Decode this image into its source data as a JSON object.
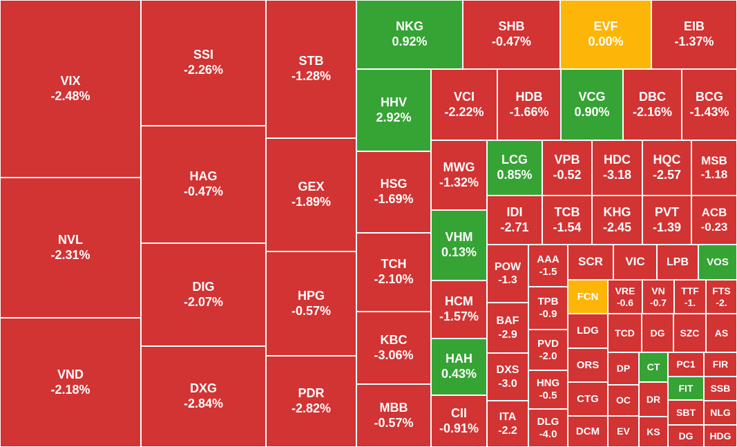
{
  "colors": {
    "down": "#d23333",
    "up": "#36a335",
    "flat": "#fdb508"
  },
  "chart_data": {
    "type": "heatmap",
    "tiles": [
      {
        "symbol": "VIX",
        "change": "-2.48%",
        "status": "down"
      },
      {
        "symbol": "NVL",
        "change": "-2.31%",
        "status": "down"
      },
      {
        "symbol": "VND",
        "change": "-2.18%",
        "status": "down"
      },
      {
        "symbol": "SSI",
        "change": "-2.26%",
        "status": "down"
      },
      {
        "symbol": "HAG",
        "change": "-0.47%",
        "status": "down"
      },
      {
        "symbol": "DIG",
        "change": "-2.07%",
        "status": "down"
      },
      {
        "symbol": "DXG",
        "change": "-2.84%",
        "status": "down"
      },
      {
        "symbol": "STB",
        "change": "-1.28%",
        "status": "down"
      },
      {
        "symbol": "GEX",
        "change": "-1.89%",
        "status": "down"
      },
      {
        "symbol": "HPG",
        "change": "-0.57%",
        "status": "down"
      },
      {
        "symbol": "PDR",
        "change": "-2.82%",
        "status": "down"
      },
      {
        "symbol": "NKG",
        "change": "0.92%",
        "status": "up"
      },
      {
        "symbol": "SHB",
        "change": "-0.47%",
        "status": "down"
      },
      {
        "symbol": "EVF",
        "change": "0.00%",
        "status": "flat"
      },
      {
        "symbol": "EIB",
        "change": "-1.37%",
        "status": "down"
      },
      {
        "symbol": "HHV",
        "change": "2.92%",
        "status": "up"
      },
      {
        "symbol": "VCI",
        "change": "-2.22%",
        "status": "down"
      },
      {
        "symbol": "HDB",
        "change": "-1.66%",
        "status": "down"
      },
      {
        "symbol": "VCG",
        "change": "0.90%",
        "status": "up"
      },
      {
        "symbol": "DBC",
        "change": "-2.16%",
        "status": "down"
      },
      {
        "symbol": "BCG",
        "change": "-1.43%",
        "status": "down"
      },
      {
        "symbol": "HSG",
        "change": "-1.69%",
        "status": "down"
      },
      {
        "symbol": "TCH",
        "change": "-2.10%",
        "status": "down"
      },
      {
        "symbol": "KBC",
        "change": "-3.06%",
        "status": "down"
      },
      {
        "symbol": "MBB",
        "change": "-0.57%",
        "status": "down"
      },
      {
        "symbol": "MWG",
        "change": "-1.32%",
        "status": "down"
      },
      {
        "symbol": "VHM",
        "change": "0.13%",
        "status": "up"
      },
      {
        "symbol": "HCM",
        "change": "-1.57%",
        "status": "down"
      },
      {
        "symbol": "HAH",
        "change": "0.43%",
        "status": "up"
      },
      {
        "symbol": "CII",
        "change": "-0.91%",
        "status": "down"
      },
      {
        "symbol": "LCG",
        "change": "0.85%",
        "status": "up"
      },
      {
        "symbol": "VPB",
        "change": "-0.52",
        "status": "down"
      },
      {
        "symbol": "HDC",
        "change": "-3.18",
        "status": "down"
      },
      {
        "symbol": "HQC",
        "change": "-2.57",
        "status": "down"
      },
      {
        "symbol": "MSB",
        "change": "-1.18",
        "status": "down"
      },
      {
        "symbol": "IDI",
        "change": "-2.71",
        "status": "down"
      },
      {
        "symbol": "TCB",
        "change": "-1.54",
        "status": "down"
      },
      {
        "symbol": "KHG",
        "change": "-2.45",
        "status": "down"
      },
      {
        "symbol": "PVT",
        "change": "-1.39",
        "status": "down"
      },
      {
        "symbol": "ACB",
        "change": "-0.23",
        "status": "down"
      },
      {
        "symbol": "POW",
        "change": "-1.3",
        "status": "down"
      },
      {
        "symbol": "BAF",
        "change": "-2.9",
        "status": "down"
      },
      {
        "symbol": "DXS",
        "change": "-3.0",
        "status": "down"
      },
      {
        "symbol": "ITA",
        "change": "-2.2",
        "status": "down"
      },
      {
        "symbol": "AAA",
        "change": "-1.5",
        "status": "down"
      },
      {
        "symbol": "TPB",
        "change": "-0.9",
        "status": "down"
      },
      {
        "symbol": "PVD",
        "change": "-2.0",
        "status": "down"
      },
      {
        "symbol": "HNG",
        "change": "-0.5",
        "status": "down"
      },
      {
        "symbol": "DLG",
        "change": "-4.0",
        "status": "down"
      },
      {
        "symbol": "SCR",
        "change": "",
        "status": "down"
      },
      {
        "symbol": "VIC",
        "change": "",
        "status": "down"
      },
      {
        "symbol": "LPB",
        "change": "",
        "status": "down"
      },
      {
        "symbol": "VOS",
        "change": "",
        "status": "up"
      },
      {
        "symbol": "FCN",
        "change": "",
        "status": "flat"
      },
      {
        "symbol": "VRE",
        "change": "-0.6",
        "status": "down"
      },
      {
        "symbol": "VN",
        "change": "-0.7",
        "status": "down"
      },
      {
        "symbol": "TTF",
        "change": "-1.",
        "status": "down"
      },
      {
        "symbol": "FTS",
        "change": "-2.",
        "status": "down"
      },
      {
        "symbol": "LDG",
        "change": "",
        "status": "down"
      },
      {
        "symbol": "TCD",
        "change": "",
        "status": "down"
      },
      {
        "symbol": "DG",
        "change": "",
        "status": "down"
      },
      {
        "symbol": "SZC",
        "change": "",
        "status": "down"
      },
      {
        "symbol": "AS",
        "change": "",
        "status": "down"
      },
      {
        "symbol": "ORS",
        "change": "",
        "status": "down"
      },
      {
        "symbol": "DP",
        "change": "",
        "status": "down"
      },
      {
        "symbol": "CT",
        "change": "",
        "status": "up"
      },
      {
        "symbol": "PC1",
        "change": "",
        "status": "down"
      },
      {
        "symbol": "FIR",
        "change": "",
        "status": "down"
      },
      {
        "symbol": "FIT",
        "change": "",
        "status": "up"
      },
      {
        "symbol": "SSB",
        "change": "",
        "status": "down"
      },
      {
        "symbol": "CTG",
        "change": "",
        "status": "down"
      },
      {
        "symbol": "OC",
        "change": "",
        "status": "down"
      },
      {
        "symbol": "DR",
        "change": "",
        "status": "down"
      },
      {
        "symbol": "SBT",
        "change": "",
        "status": "down"
      },
      {
        "symbol": "NLG",
        "change": "",
        "status": "down"
      },
      {
        "symbol": "DCM",
        "change": "",
        "status": "down"
      },
      {
        "symbol": "EV",
        "change": "",
        "status": "down"
      },
      {
        "symbol": "KS",
        "change": "",
        "status": "down"
      },
      {
        "symbol": "DG",
        "change": "",
        "status": "down"
      },
      {
        "symbol": "HDG",
        "change": "",
        "status": "down"
      }
    ]
  }
}
